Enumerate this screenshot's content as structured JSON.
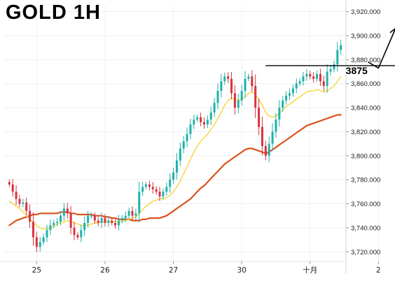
{
  "title": "GOLD 1H",
  "chart_data": {
    "type": "candlestick",
    "title": "GOLD 1H",
    "ylim": [
      3712,
      3925
    ],
    "y_ticks": [
      "3,720.000",
      "3,740.000",
      "3,760.000",
      "3,780.000",
      "3,800.000",
      "3,820.000",
      "3,840.000",
      "3,860.000",
      "3,880.000",
      "3,900.000",
      "3,920.000"
    ],
    "y_tick_values": [
      3720,
      3740,
      3760,
      3780,
      3800,
      3820,
      3840,
      3860,
      3880,
      3900,
      3920
    ],
    "x_ticks": [
      {
        "label": "25",
        "index": 8
      },
      {
        "label": "26",
        "index": 28
      },
      {
        "label": "27",
        "index": 48
      },
      {
        "label": "30",
        "index": 68
      },
      {
        "label": "十月",
        "index": 88
      },
      {
        "label": "2",
        "index": 108
      }
    ],
    "colors": {
      "up": "#20b2aa",
      "down": "#d9333f",
      "fast_ma": "#f4d73b",
      "slow_ma": "#d9531e",
      "level": "#000000"
    },
    "horizontal_level": {
      "value": 3875,
      "label": "3875",
      "from_index": 75,
      "to_index": 119
    },
    "projection_arrow": {
      "points": [
        [
          105,
          3878
        ],
        [
          108,
          3873
        ],
        [
          113,
          3906
        ]
      ]
    },
    "close": [
      3776,
      3770,
      3764,
      3760,
      3761,
      3754,
      3745,
      3732,
      3724,
      3728,
      3732,
      3738,
      3742,
      3744,
      3745,
      3750,
      3756,
      3752,
      3740,
      3734,
      3732,
      3738,
      3744,
      3750,
      3750,
      3746,
      3744,
      3748,
      3744,
      3746,
      3744,
      3742,
      3746,
      3748,
      3750,
      3754,
      3750,
      3752,
      3770,
      3774,
      3776,
      3774,
      3772,
      3770,
      3766,
      3770,
      3774,
      3780,
      3786,
      3796,
      3806,
      3812,
      3818,
      3826,
      3830,
      3832,
      3828,
      3826,
      3830,
      3836,
      3844,
      3854,
      3862,
      3866,
      3864,
      3852,
      3840,
      3846,
      3854,
      3864,
      3866,
      3858,
      3840,
      3824,
      3808,
      3800,
      3810,
      3820,
      3830,
      3840,
      3846,
      3850,
      3852,
      3856,
      3860,
      3862,
      3866,
      3868,
      3866,
      3864,
      3868,
      3862,
      3858,
      3870,
      3872,
      3876,
      3888,
      3892
    ],
    "ma_fast": [
      3762,
      3760,
      3758,
      3756,
      3753,
      3750,
      3747,
      3744,
      3742,
      3740,
      3739,
      3739,
      3740,
      3741,
      3743,
      3744,
      3745,
      3746,
      3745,
      3744,
      3743,
      3742,
      3742,
      3742,
      3743,
      3744,
      3744,
      3745,
      3745,
      3745,
      3745,
      3745,
      3745,
      3745,
      3746,
      3747,
      3748,
      3749,
      3752,
      3755,
      3758,
      3760,
      3762,
      3763,
      3764,
      3764,
      3765,
      3767,
      3770,
      3774,
      3779,
      3785,
      3791,
      3797,
      3803,
      3808,
      3812,
      3815,
      3818,
      3822,
      3826,
      3831,
      3836,
      3842,
      3846,
      3848,
      3847,
      3846,
      3847,
      3849,
      3852,
      3853,
      3851,
      3847,
      3842,
      3836,
      3833,
      3832,
      3833,
      3835,
      3838,
      3841,
      3843,
      3845,
      3847,
      3849,
      3851,
      3853,
      3854,
      3854,
      3855,
      3854,
      3853,
      3854,
      3856,
      3858,
      3862,
      3866
    ],
    "ma_slow": [
      3742,
      3744,
      3746,
      3747,
      3748,
      3749,
      3750,
      3751,
      3751,
      3752,
      3752,
      3752,
      3752,
      3752,
      3752,
      3753,
      3753,
      3753,
      3752,
      3752,
      3751,
      3751,
      3751,
      3751,
      3751,
      3750,
      3750,
      3750,
      3749,
      3749,
      3748,
      3748,
      3747,
      3747,
      3747,
      3747,
      3746,
      3746,
      3746,
      3747,
      3747,
      3748,
      3748,
      3748,
      3748,
      3749,
      3750,
      3752,
      3754,
      3756,
      3758,
      3760,
      3762,
      3764,
      3767,
      3770,
      3773,
      3775,
      3778,
      3781,
      3784,
      3787,
      3790,
      3793,
      3795,
      3797,
      3799,
      3801,
      3803,
      3805,
      3806,
      3806,
      3805,
      3804,
      3803,
      3802,
      3803,
      3805,
      3807,
      3809,
      3811,
      3813,
      3815,
      3817,
      3819,
      3821,
      3823,
      3825,
      3826,
      3827,
      3828,
      3829,
      3830,
      3831,
      3832,
      3833,
      3834,
      3834
    ]
  }
}
